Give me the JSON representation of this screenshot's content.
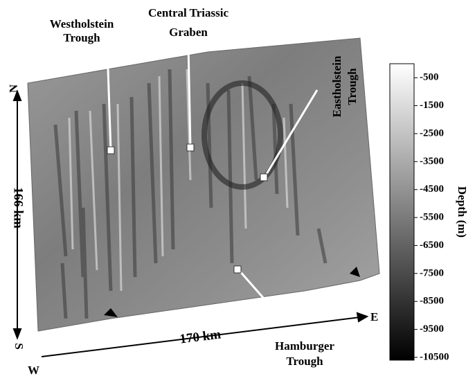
{
  "figure": {
    "annotations": {
      "westholstein": [
        "Westholstein",
        "Trough"
      ],
      "central": [
        "Central Triassic",
        "Graben"
      ],
      "eastholstein": [
        "Eastholstein",
        "Trough"
      ],
      "hamburger": [
        "Hamburger",
        "Trough"
      ]
    },
    "axes": {
      "north": "N",
      "south": "S",
      "west": "W",
      "east": "E",
      "ns_length": "166 km",
      "we_length": "170 km"
    },
    "colorbar": {
      "label": "Depth (m)",
      "lim": [
        -10600,
        0
      ],
      "ticks": [
        -500,
        -1500,
        -2500,
        -3500,
        -4500,
        -5500,
        -6500,
        -7500,
        -8500,
        -9500,
        -10500
      ]
    }
  }
}
